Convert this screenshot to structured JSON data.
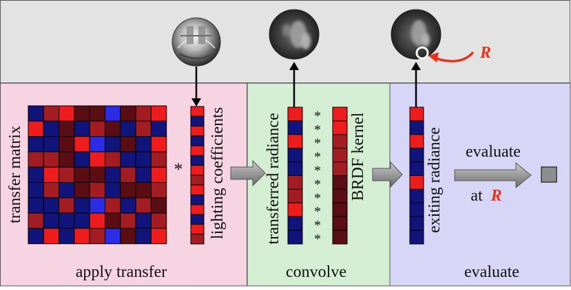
{
  "colors": {
    "top_band": "#e3e3e3",
    "panel_transfer": "#f7d4e2",
    "panel_convolve": "#d3eed2",
    "panel_evaluate": "#d8d6f6",
    "accent_red": "#e8311a",
    "grid_line": "#000000"
  },
  "panels": {
    "apply_transfer": {
      "caption": "apply transfer",
      "matrix_label": "transfer matrix",
      "operator": "*",
      "vector_label": "lighting coefficients"
    },
    "convolve": {
      "caption": "convolve",
      "vector_label": "transferred radiance",
      "operator_symbol": "*",
      "kernel_label": "BRDF kernel"
    },
    "evaluate": {
      "caption": "evaluate",
      "vector_label": "exiting radiance",
      "action_label": "evaluate",
      "at_prefix": "at",
      "at_symbol": "R"
    }
  },
  "top_band": {
    "direction_symbol": "R"
  },
  "icons": {
    "environment_map": "light-probe-sphere-icon",
    "convolved_sphere": "blurred-sphere-icon",
    "exit_sphere": "blurred-sphere-with-marker-icon",
    "result": "output-square-icon"
  },
  "matrix_cells": [
    "b",
    "r",
    "R",
    "K",
    "K",
    "B",
    "K",
    "r",
    "R",
    "R",
    "b",
    "K",
    "b",
    "r",
    "K",
    "b",
    "r",
    "b",
    "b",
    "b",
    "K",
    "R",
    "B",
    "b",
    "K",
    "b",
    "R",
    "r",
    "r",
    "K",
    "b",
    "R",
    "r",
    "b",
    "b",
    "r",
    "b",
    "R",
    "r",
    "K",
    "K",
    "b",
    "r",
    "b",
    "R",
    "b",
    "r",
    "b",
    "K",
    "r",
    "b",
    "K",
    "K",
    "r",
    "b",
    "b",
    "r",
    "b",
    "B",
    "r",
    "b",
    "r",
    "K",
    "r",
    "b",
    "b",
    "b",
    "R",
    "K",
    "r",
    "b",
    "r",
    "b",
    "R",
    "b",
    "R",
    "r",
    "B",
    "K",
    "b",
    "R"
  ],
  "cell_palette": {
    "R": "#ee1c1c",
    "r": "#a31c22",
    "K": "#5a0e14",
    "B": "#2a2ce6",
    "b": "#11147a"
  },
  "vector_lighting": [
    "R",
    "b",
    "R",
    "b",
    "R",
    "b",
    "R",
    "r",
    "R",
    "b",
    "R",
    "b",
    "R",
    "r"
  ],
  "vector_transferred": [
    "R",
    "b",
    "R",
    "b",
    "b",
    "r",
    "r",
    "R",
    "b",
    "b"
  ],
  "vector_kernel": [
    "R",
    "R",
    "r",
    "r",
    "r",
    "K",
    "K",
    "K",
    "K",
    "K"
  ],
  "vector_exiting": [
    "R",
    "b",
    "R",
    "b",
    "b",
    "R",
    "b",
    "b",
    "b",
    "b"
  ]
}
